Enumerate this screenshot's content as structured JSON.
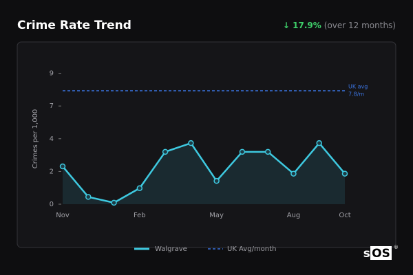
{
  "chart_data": {
    "type": "line",
    "title": "Crime Rate Trend",
    "change_label": "↓ 17.9%",
    "change_note": "(over 12 months)",
    "y_label": "Crimes per 1,000",
    "categories": [
      "Nov",
      null,
      null,
      "Feb",
      null,
      null,
      "May",
      null,
      null,
      "Aug",
      null,
      "Oct"
    ],
    "series": [
      {
        "name": "Walgrave",
        "color": "#3ec9e0",
        "values": [
          2.6,
          0.5,
          0.1,
          1.1,
          3.6,
          4.2,
          1.6,
          3.6,
          3.6,
          2.1,
          4.2,
          2.1
        ]
      }
    ],
    "reference": {
      "name": "UK Avg/month",
      "value": 7.8,
      "color": "#3b74e0",
      "label_lines": [
        "UK avg",
        "7.8/m"
      ]
    },
    "ylim": [
      0,
      9.5
    ],
    "yticks": [
      0,
      {
        "value": 2.25,
        "label": "2"
      },
      {
        "value": 4.5,
        "label": "4"
      },
      {
        "value": 6.75,
        "label": "7"
      },
      9
    ],
    "grid": false,
    "logo": [
      "sc",
      "OS",
      "®"
    ]
  }
}
